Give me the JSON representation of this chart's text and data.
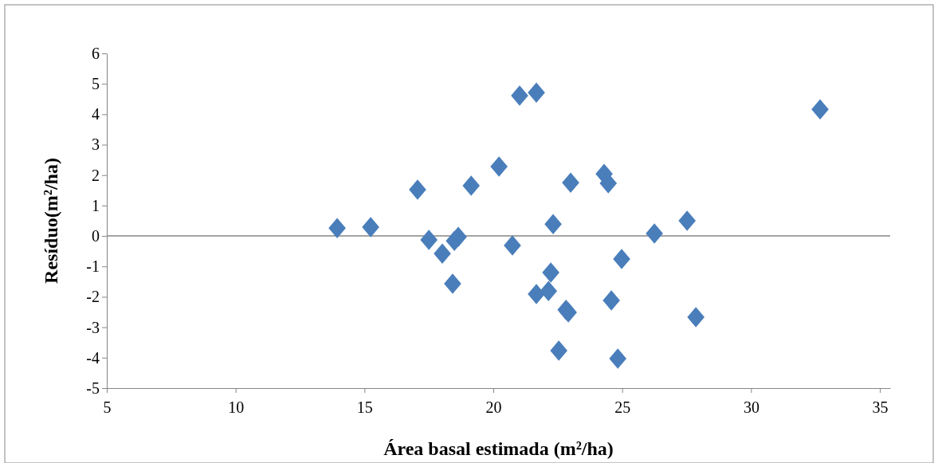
{
  "chart_data": {
    "type": "scatter",
    "xlabel": "Área basal estimada (m²/ha)",
    "ylabel": "Resíduo(m²/ha)",
    "x": [
      13.94,
      15.24,
      17.06,
      17.5,
      18.02,
      18.42,
      18.49,
      18.64,
      19.14,
      20.22,
      20.74,
      21.02,
      21.67,
      21.67,
      22.14,
      22.23,
      22.32,
      22.54,
      22.82,
      22.91,
      23.0,
      24.3,
      24.46,
      24.58,
      24.83,
      24.98,
      26.25,
      27.52,
      27.86,
      32.68
    ],
    "series": [
      {
        "color": "#4a7ebb",
        "values": [
          0.26,
          0.29,
          1.52,
          -0.13,
          -0.58,
          -1.57,
          -0.16,
          -0.03,
          1.65,
          2.28,
          -0.31,
          4.61,
          4.71,
          -1.91,
          -1.81,
          -1.2,
          0.39,
          -3.77,
          -2.43,
          -2.51,
          1.75,
          2.04,
          1.73,
          -2.12,
          -4.03,
          -0.76,
          0.08,
          0.5,
          -2.67,
          4.16
        ]
      }
    ],
    "xlim": [
      5,
      35.4
    ],
    "xticks": [
      5,
      10,
      15,
      20,
      25,
      30,
      35
    ],
    "ylim": [
      -5,
      6
    ],
    "yticks": [
      -5,
      -4,
      -3,
      -2,
      -1,
      0,
      1,
      2,
      3,
      4,
      5,
      6
    ],
    "ref_lines": [
      {
        "axis": "y",
        "value": 0,
        "color": "#868686"
      }
    ],
    "marker": "diamond",
    "grid": false
  }
}
